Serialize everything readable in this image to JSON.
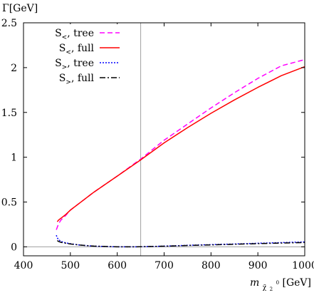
{
  "chart_data": {
    "type": "line",
    "ylabel": "Γ[GeV]",
    "xlabel": "m_{χ̃₂⁰} [GeV]",
    "xlabel_main": "m",
    "xlabel_sub": "χ̃",
    "xlabel_subsub": "2",
    "xlabel_sup": "0",
    "xlabel_unit": " [GeV]",
    "xlim": [
      400,
      1000
    ],
    "ylim": [
      -0.1,
      2.5
    ],
    "xticks": [
      400,
      500,
      600,
      700,
      800,
      900,
      1000
    ],
    "xtick_labels": [
      "400",
      "500",
      "600",
      "700",
      "800",
      "900",
      "1000"
    ],
    "yticks": [
      0,
      0.5,
      1,
      1.5,
      2,
      2.5
    ],
    "ytick_labels": [
      "0",
      "0.5",
      "1",
      "1.5",
      "2",
      "2.5"
    ],
    "vline_x": 650,
    "hline_y": 0,
    "legend_position": "top-left",
    "grid": false,
    "series": [
      {
        "name": "S<, tree",
        "name_main": "S",
        "name_sub": "<",
        "name_rest": ", tree",
        "color": "#ff00ff",
        "dash": "7,4",
        "x": [
          470,
          475,
          480,
          490,
          500,
          520,
          550,
          600,
          650,
          700,
          750,
          800,
          850,
          900,
          950,
          1000
        ],
        "y": [
          0.19,
          0.26,
          0.3,
          0.35,
          0.41,
          0.49,
          0.61,
          0.79,
          0.98,
          1.19,
          1.37,
          1.55,
          1.72,
          1.88,
          2.02,
          2.09
        ]
      },
      {
        "name": "S<, full",
        "name_main": "S",
        "name_sub": "<",
        "name_rest": ", full",
        "color": "#ff0000",
        "dash": "",
        "x": [
          472,
          475,
          480,
          490,
          500,
          520,
          550,
          600,
          650,
          700,
          750,
          800,
          850,
          900,
          950,
          1000
        ],
        "y": [
          0.28,
          0.3,
          0.32,
          0.36,
          0.41,
          0.49,
          0.61,
          0.79,
          0.97,
          1.16,
          1.33,
          1.49,
          1.64,
          1.78,
          1.91,
          2.01
        ]
      },
      {
        "name": "S>, tree",
        "name_main": "S",
        "name_sub": ">",
        "name_rest": ", tree",
        "color": "#0000ff",
        "dash": "2,2",
        "x": [
          470,
          472,
          475,
          480,
          490,
          500,
          520,
          550,
          600,
          650,
          700,
          750,
          800,
          850,
          900,
          950,
          1000
        ],
        "y": [
          0.13,
          0.1,
          0.08,
          0.06,
          0.045,
          0.035,
          0.02,
          0.008,
          0.0,
          0.001,
          0.008,
          0.017,
          0.025,
          0.032,
          0.04,
          0.047,
          0.055
        ]
      },
      {
        "name": "S>, full",
        "name_main": "S",
        "name_sub": ">",
        "name_rest": ", full",
        "color": "#000000",
        "dash": "8,3,2,3",
        "x": [
          472,
          475,
          480,
          490,
          500,
          520,
          550,
          600,
          650,
          700,
          750,
          800,
          850,
          900,
          950,
          1000
        ],
        "y": [
          0.07,
          0.06,
          0.05,
          0.04,
          0.032,
          0.02,
          0.008,
          0.0,
          0.001,
          0.007,
          0.015,
          0.022,
          0.029,
          0.036,
          0.042,
          0.048
        ]
      }
    ]
  }
}
